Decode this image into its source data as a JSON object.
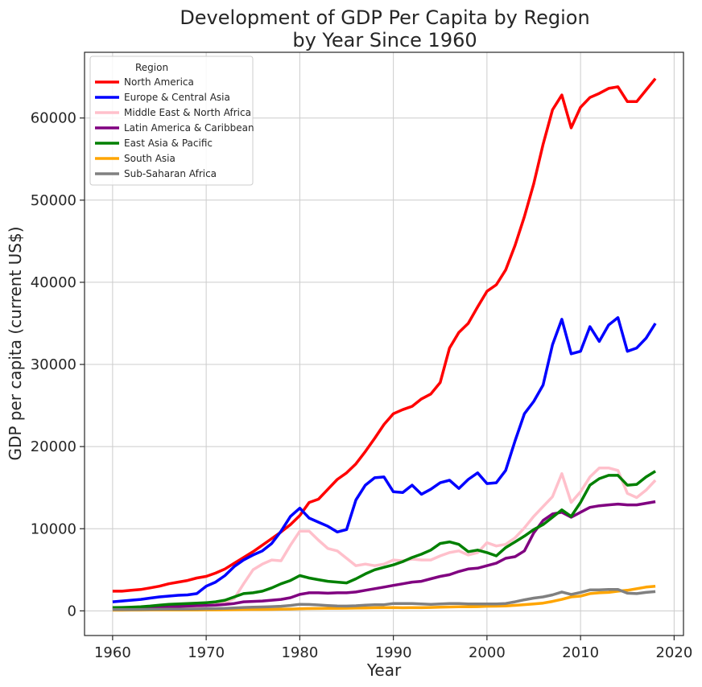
{
  "chart_data": {
    "type": "line",
    "title_line1": "Development of GDP Per Capita by Region",
    "title_line2": "by Year Since 1960",
    "xlabel": "Year",
    "ylabel": "GDP per capita (current US$)",
    "xlim": [
      1957,
      2021
    ],
    "ylim": [
      -3000,
      68000
    ],
    "xticks": [
      1960,
      1970,
      1980,
      1990,
      2000,
      2010,
      2020
    ],
    "yticks": [
      0,
      10000,
      20000,
      30000,
      40000,
      50000,
      60000
    ],
    "grid": true,
    "legend": {
      "title": "Region",
      "position": "top-left"
    },
    "series": [
      {
        "name": "North America",
        "color": "#ff0000",
        "x": [
          1960,
          1961,
          1962,
          1963,
          1964,
          1965,
          1966,
          1967,
          1968,
          1969,
          1970,
          1971,
          1972,
          1973,
          1974,
          1975,
          1976,
          1977,
          1978,
          1979,
          1980,
          1981,
          1982,
          1983,
          1984,
          1985,
          1986,
          1987,
          1988,
          1989,
          1990,
          1991,
          1992,
          1993,
          1994,
          1995,
          1996,
          1997,
          1998,
          1999,
          2000,
          2001,
          2002,
          2003,
          2004,
          2005,
          2006,
          2007,
          2008,
          2009,
          2010,
          2011,
          2012,
          2013,
          2014,
          2015,
          2016,
          2017,
          2018
        ],
        "values": [
          2400,
          2400,
          2500,
          2600,
          2800,
          3000,
          3300,
          3500,
          3700,
          4000,
          4200,
          4600,
          5100,
          5800,
          6500,
          7200,
          8000,
          8800,
          9600,
          10500,
          11600,
          13200,
          13600,
          14800,
          16000,
          16800,
          17900,
          19400,
          21000,
          22700,
          24000,
          24500,
          24900,
          25800,
          26400,
          27800,
          32000,
          33900,
          35000,
          37000,
          38900,
          39700,
          41500,
          44500,
          48000,
          52000,
          56800,
          61000,
          62800,
          58800,
          61300,
          62500,
          63000,
          63600,
          63800,
          62000,
          62000,
          63400,
          64800
        ]
      },
      {
        "name": "Europe & Central Asia",
        "color": "#0000ff",
        "x": [
          1960,
          1961,
          1962,
          1963,
          1964,
          1965,
          1966,
          1967,
          1968,
          1969,
          1970,
          1971,
          1972,
          1973,
          1974,
          1975,
          1976,
          1977,
          1978,
          1979,
          1980,
          1981,
          1982,
          1983,
          1984,
          1985,
          1986,
          1987,
          1988,
          1989,
          1990,
          1991,
          1992,
          1993,
          1994,
          1995,
          1996,
          1997,
          1998,
          1999,
          2000,
          2001,
          2002,
          2003,
          2004,
          2005,
          2006,
          2007,
          2008,
          2009,
          2010,
          2011,
          2012,
          2013,
          2014,
          2015,
          2016,
          2017,
          2018
        ],
        "values": [
          1100,
          1200,
          1300,
          1400,
          1550,
          1700,
          1800,
          1900,
          1950,
          2100,
          3000,
          3500,
          4300,
          5400,
          6200,
          6800,
          7300,
          8200,
          9700,
          11500,
          12500,
          11300,
          10800,
          10300,
          9600,
          9900,
          13500,
          15300,
          16200,
          16300,
          14500,
          14400,
          15300,
          14200,
          14800,
          15600,
          15900,
          14900,
          16000,
          16800,
          15500,
          15600,
          17100,
          20700,
          24000,
          25500,
          27500,
          32400,
          35500,
          31300,
          31600,
          34600,
          32800,
          34800,
          35700,
          31600,
          32000,
          33200,
          35000
        ]
      },
      {
        "name": "Middle East & North Africa",
        "color": "#ffc0cb",
        "x": [
          1960,
          1961,
          1962,
          1963,
          1964,
          1965,
          1966,
          1967,
          1968,
          1969,
          1970,
          1971,
          1972,
          1973,
          1974,
          1975,
          1976,
          1977,
          1978,
          1979,
          1980,
          1981,
          1982,
          1983,
          1984,
          1985,
          1986,
          1987,
          1988,
          1989,
          1990,
          1991,
          1992,
          1993,
          1994,
          1995,
          1996,
          1997,
          1998,
          1999,
          2000,
          2001,
          2002,
          2003,
          2004,
          2005,
          2006,
          2007,
          2008,
          2009,
          2010,
          2011,
          2012,
          2013,
          2014,
          2015,
          2016,
          2017,
          2018
        ],
        "values": [
          300,
          320,
          340,
          360,
          380,
          400,
          430,
          460,
          500,
          550,
          650,
          800,
          1000,
          1500,
          3300,
          5000,
          5700,
          6200,
          6100,
          8000,
          9700,
          9700,
          8600,
          7600,
          7300,
          6400,
          5500,
          5700,
          5500,
          5700,
          6200,
          6100,
          6300,
          6200,
          6200,
          6700,
          7100,
          7300,
          6800,
          7100,
          8300,
          7900,
          8100,
          8900,
          10100,
          11500,
          12700,
          13900,
          16700,
          13200,
          14500,
          16300,
          17400,
          17400,
          17100,
          14300,
          13800,
          14700,
          15900
        ]
      },
      {
        "name": "Latin America & Caribbean",
        "color": "#800080",
        "x": [
          1960,
          1961,
          1962,
          1963,
          1964,
          1965,
          1966,
          1967,
          1968,
          1969,
          1970,
          1971,
          1972,
          1973,
          1974,
          1975,
          1976,
          1977,
          1978,
          1979,
          1980,
          1981,
          1982,
          1983,
          1984,
          1985,
          1986,
          1987,
          1988,
          1989,
          1990,
          1991,
          1992,
          1993,
          1994,
          1995,
          1996,
          1997,
          1998,
          1999,
          2000,
          2001,
          2002,
          2003,
          2004,
          2005,
          2006,
          2007,
          2008,
          2009,
          2010,
          2011,
          2012,
          2013,
          2014,
          2015,
          2016,
          2017,
          2018
        ],
        "values": [
          350,
          370,
          390,
          420,
          450,
          480,
          510,
          540,
          580,
          630,
          650,
          700,
          780,
          900,
          1100,
          1150,
          1200,
          1300,
          1400,
          1600,
          2000,
          2200,
          2200,
          2150,
          2200,
          2200,
          2300,
          2500,
          2700,
          2900,
          3100,
          3300,
          3500,
          3600,
          3900,
          4200,
          4400,
          4800,
          5100,
          5200,
          5500,
          5800,
          6400,
          6600,
          7300,
          9500,
          11000,
          11800,
          12000,
          11400,
          12000,
          12600,
          12800,
          12900,
          13000,
          12900,
          12900,
          13100,
          13300
        ]
      },
      {
        "name": "East Asia & Pacific",
        "color": "#008000",
        "x": [
          1960,
          1961,
          1962,
          1963,
          1964,
          1965,
          1966,
          1967,
          1968,
          1969,
          1970,
          1971,
          1972,
          1973,
          1974,
          1975,
          1976,
          1977,
          1978,
          1979,
          1980,
          1981,
          1982,
          1983,
          1984,
          1985,
          1986,
          1987,
          1988,
          1989,
          1990,
          1991,
          1992,
          1993,
          1994,
          1995,
          1996,
          1997,
          1998,
          1999,
          2000,
          2001,
          2002,
          2003,
          2004,
          2005,
          2006,
          2007,
          2008,
          2009,
          2010,
          2011,
          2012,
          2013,
          2014,
          2015,
          2016,
          2017,
          2018
        ],
        "values": [
          400,
          420,
          450,
          500,
          580,
          700,
          800,
          850,
          900,
          950,
          1000,
          1100,
          1300,
          1700,
          2100,
          2200,
          2400,
          2800,
          3300,
          3700,
          4300,
          4000,
          3800,
          3600,
          3500,
          3400,
          3900,
          4500,
          5000,
          5300,
          5600,
          6000,
          6500,
          6900,
          7400,
          8200,
          8400,
          8100,
          7200,
          7400,
          7100,
          6700,
          7700,
          8400,
          9100,
          9900,
          10500,
          11400,
          12300,
          11500,
          13200,
          15300,
          16100,
          16500,
          16500,
          15300,
          15400,
          16300,
          17000
        ]
      },
      {
        "name": "South Asia",
        "color": "#ffa500",
        "x": [
          1960,
          1961,
          1962,
          1963,
          1964,
          1965,
          1966,
          1967,
          1968,
          1969,
          1970,
          1971,
          1972,
          1973,
          1974,
          1975,
          1976,
          1977,
          1978,
          1979,
          1980,
          1981,
          1982,
          1983,
          1984,
          1985,
          1986,
          1987,
          1988,
          1989,
          1990,
          1991,
          1992,
          1993,
          1994,
          1995,
          1996,
          1997,
          1998,
          1999,
          2000,
          2001,
          2002,
          2003,
          2004,
          2005,
          2006,
          2007,
          2008,
          2009,
          2010,
          2011,
          2012,
          2013,
          2014,
          2015,
          2016,
          2017,
          2018
        ],
        "values": [
          80,
          85,
          90,
          95,
          100,
          105,
          100,
          105,
          110,
          115,
          120,
          125,
          130,
          140,
          160,
          170,
          175,
          185,
          200,
          220,
          260,
          280,
          290,
          300,
          310,
          320,
          340,
          360,
          380,
          390,
          400,
          380,
          390,
          390,
          420,
          460,
          480,
          500,
          500,
          520,
          560,
          570,
          600,
          670,
          760,
          850,
          950,
          1150,
          1400,
          1700,
          1800,
          2100,
          2200,
          2250,
          2400,
          2500,
          2700,
          2900,
          3000
        ]
      },
      {
        "name": "Sub-Saharan Africa",
        "color": "#808080",
        "x": [
          1960,
          1961,
          1962,
          1963,
          1964,
          1965,
          1966,
          1967,
          1968,
          1969,
          1970,
          1971,
          1972,
          1973,
          1974,
          1975,
          1976,
          1977,
          1978,
          1979,
          1980,
          1981,
          1982,
          1983,
          1984,
          1985,
          1986,
          1987,
          1988,
          1989,
          1990,
          1991,
          1992,
          1993,
          1994,
          1995,
          1996,
          1997,
          1998,
          1999,
          2000,
          2001,
          2002,
          2003,
          2004,
          2005,
          2006,
          2007,
          2008,
          2009,
          2010,
          2011,
          2012,
          2013,
          2014,
          2015,
          2016,
          2017,
          2018
        ],
        "values": [
          150,
          155,
          160,
          170,
          180,
          190,
          200,
          210,
          220,
          230,
          260,
          280,
          300,
          350,
          420,
          450,
          480,
          520,
          560,
          660,
          800,
          780,
          720,
          650,
          600,
          580,
          620,
          700,
          750,
          750,
          900,
          900,
          900,
          850,
          800,
          850,
          900,
          900,
          850,
          850,
          850,
          850,
          900,
          1100,
          1350,
          1550,
          1700,
          1950,
          2300,
          2000,
          2250,
          2550,
          2550,
          2600,
          2600,
          2150,
          2100,
          2250,
          2350
        ]
      }
    ]
  }
}
